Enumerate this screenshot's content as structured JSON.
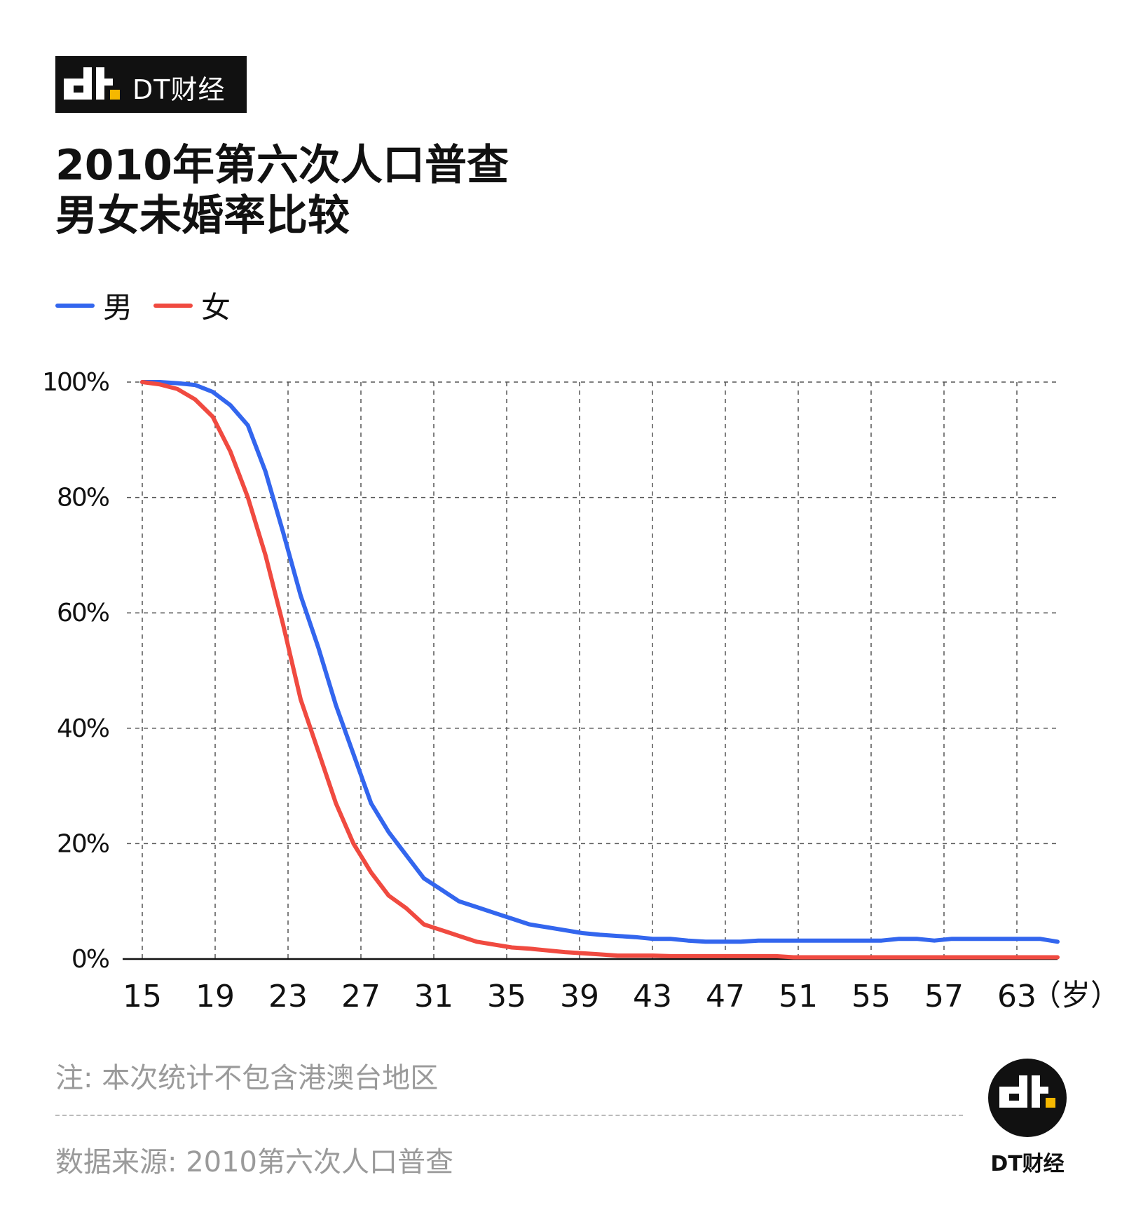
{
  "brand": {
    "name": "DT财经",
    "accent_color": "#f5b800"
  },
  "title": {
    "line1": "2010年第六次人口普查",
    "line2": "男女未婚率比较"
  },
  "chart_data": {
    "type": "line",
    "x_unit_label": "（岁）",
    "x_tick_labels": [
      "15",
      "19",
      "23",
      "27",
      "31",
      "35",
      "39",
      "43",
      "47",
      "51",
      "55",
      "57",
      "63"
    ],
    "y_tick_labels": [
      "0%",
      "20%",
      "40%",
      "60%",
      "80%",
      "100%"
    ],
    "ylim": [
      0,
      100
    ],
    "grid": true,
    "legend_position": "top-left",
    "series": [
      {
        "name": "男",
        "color": "#3366ee",
        "values": [
          100,
          100,
          99.8,
          99.5,
          98.3,
          96,
          92.5,
          84.5,
          74,
          63,
          54,
          44,
          35.5,
          27,
          22,
          18,
          14,
          12,
          10,
          9,
          8,
          7,
          6,
          5.5,
          5,
          4.5,
          4.2,
          4,
          3.8,
          3.5,
          3.5,
          3.2,
          3,
          3,
          3,
          3.2,
          3.2,
          3.2,
          3.2,
          3.2,
          3.2,
          3.2,
          3.2,
          3.5,
          3.5,
          3.2,
          3.5,
          3.5,
          3.5,
          3.5,
          3.5,
          3.5,
          3
        ]
      },
      {
        "name": "女",
        "color": "#f04a40",
        "values": [
          100,
          99.6,
          98.8,
          97,
          94,
          88,
          80,
          70,
          58,
          45,
          36,
          27,
          20,
          15,
          11,
          8.8,
          6,
          5,
          4,
          3,
          2.5,
          2,
          1.8,
          1.5,
          1.2,
          1,
          0.8,
          0.6,
          0.6,
          0.6,
          0.5,
          0.5,
          0.5,
          0.5,
          0.5,
          0.5,
          0.5,
          0.3,
          0.3,
          0.3,
          0.3,
          0.3,
          0.3,
          0.3,
          0.3,
          0.3,
          0.3,
          0.3,
          0.3,
          0.3,
          0.3,
          0.3,
          0.3
        ]
      }
    ]
  },
  "note": "注: 本次统计不包含港澳台地区",
  "source": "数据来源: 2010第六次人口普查"
}
